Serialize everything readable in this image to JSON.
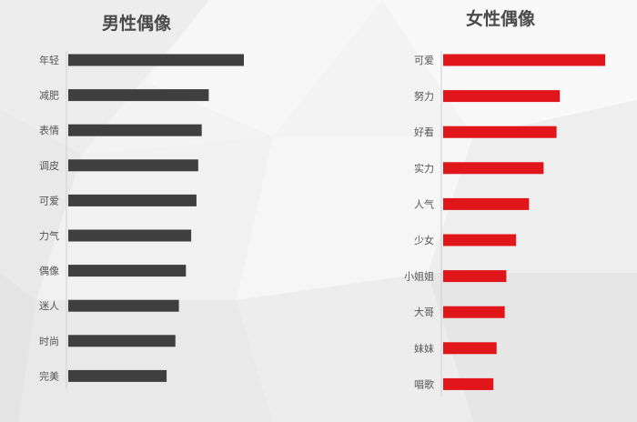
{
  "colors": {
    "male_bar": "#3f3f3f",
    "female_bar": "#e0161b",
    "axis": "#cfcfcf"
  },
  "chart_data": [
    {
      "type": "bar",
      "orientation": "horizontal",
      "title": "男性偶像",
      "categories": [
        "年轻",
        "减肥",
        "表情",
        "调皮",
        "可爱",
        "力气",
        "偶像",
        "迷人",
        "时尚",
        "完美"
      ],
      "values": [
        100,
        80,
        76,
        74,
        73,
        70,
        67,
        63,
        61,
        56
      ],
      "xlim": [
        0,
        100
      ],
      "grid": false
    },
    {
      "type": "bar",
      "orientation": "horizontal",
      "title": "女性偶像",
      "categories": [
        "可爱",
        "努力",
        "好看",
        "实力",
        "人气",
        "少女",
        "小姐姐",
        "大哥",
        "妹妹",
        "唱歌"
      ],
      "values": [
        100,
        72,
        70,
        62,
        53,
        45,
        39,
        38,
        33,
        31
      ],
      "xlim": [
        0,
        100
      ],
      "grid": false
    }
  ]
}
